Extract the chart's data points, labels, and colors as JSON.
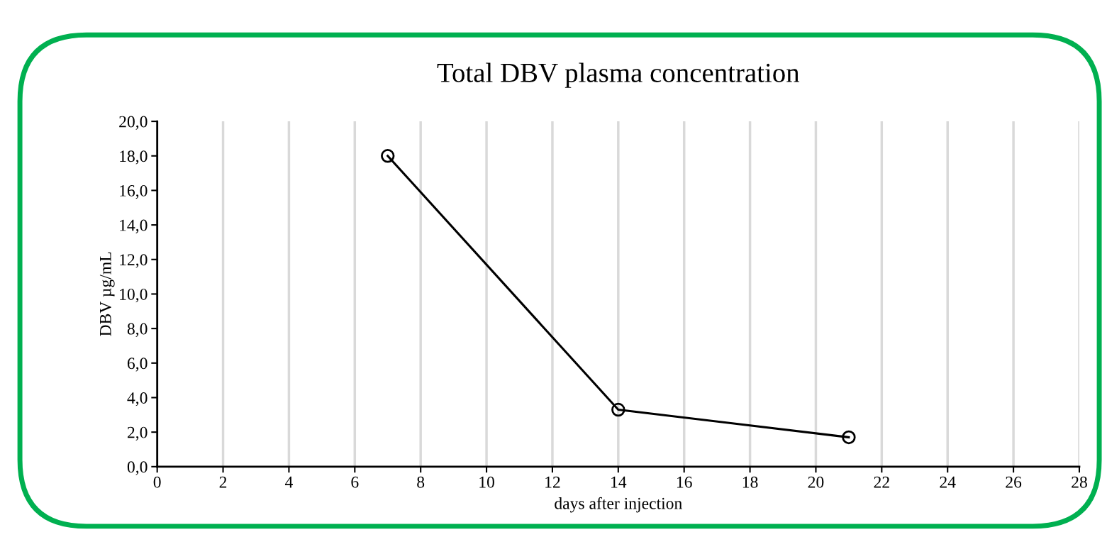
{
  "chart_data": {
    "type": "line",
    "title": "Total DBV plasma concentration",
    "xlabel": "days after injection",
    "ylabel": "DBV µg/mL",
    "x": [
      7,
      14,
      21
    ],
    "series": [
      {
        "color": "#000000",
        "values": [
          18.0,
          3.3,
          1.7
        ]
      }
    ],
    "xlim": [
      0,
      28
    ],
    "xticks": [
      0,
      2,
      4,
      6,
      8,
      10,
      12,
      14,
      16,
      18,
      20,
      22,
      24,
      26,
      28
    ],
    "ylim": [
      0,
      20
    ],
    "yticks": [
      {
        "value": 0,
        "label": "0,0"
      },
      {
        "value": 2,
        "label": "2,0"
      },
      {
        "value": 4,
        "label": "4,0"
      },
      {
        "value": 6,
        "label": "6,0"
      },
      {
        "value": 8,
        "label": "8,0"
      },
      {
        "value": 10,
        "label": "10,0"
      },
      {
        "value": 12,
        "label": "12,0"
      },
      {
        "value": 14,
        "label": "14,0"
      },
      {
        "value": 16,
        "label": "16,0"
      },
      {
        "value": 18,
        "label": "18,0"
      },
      {
        "value": 20,
        "label": "20,0"
      }
    ],
    "grid": "x",
    "marker": "circle",
    "line_style": "solid",
    "legend": false
  }
}
